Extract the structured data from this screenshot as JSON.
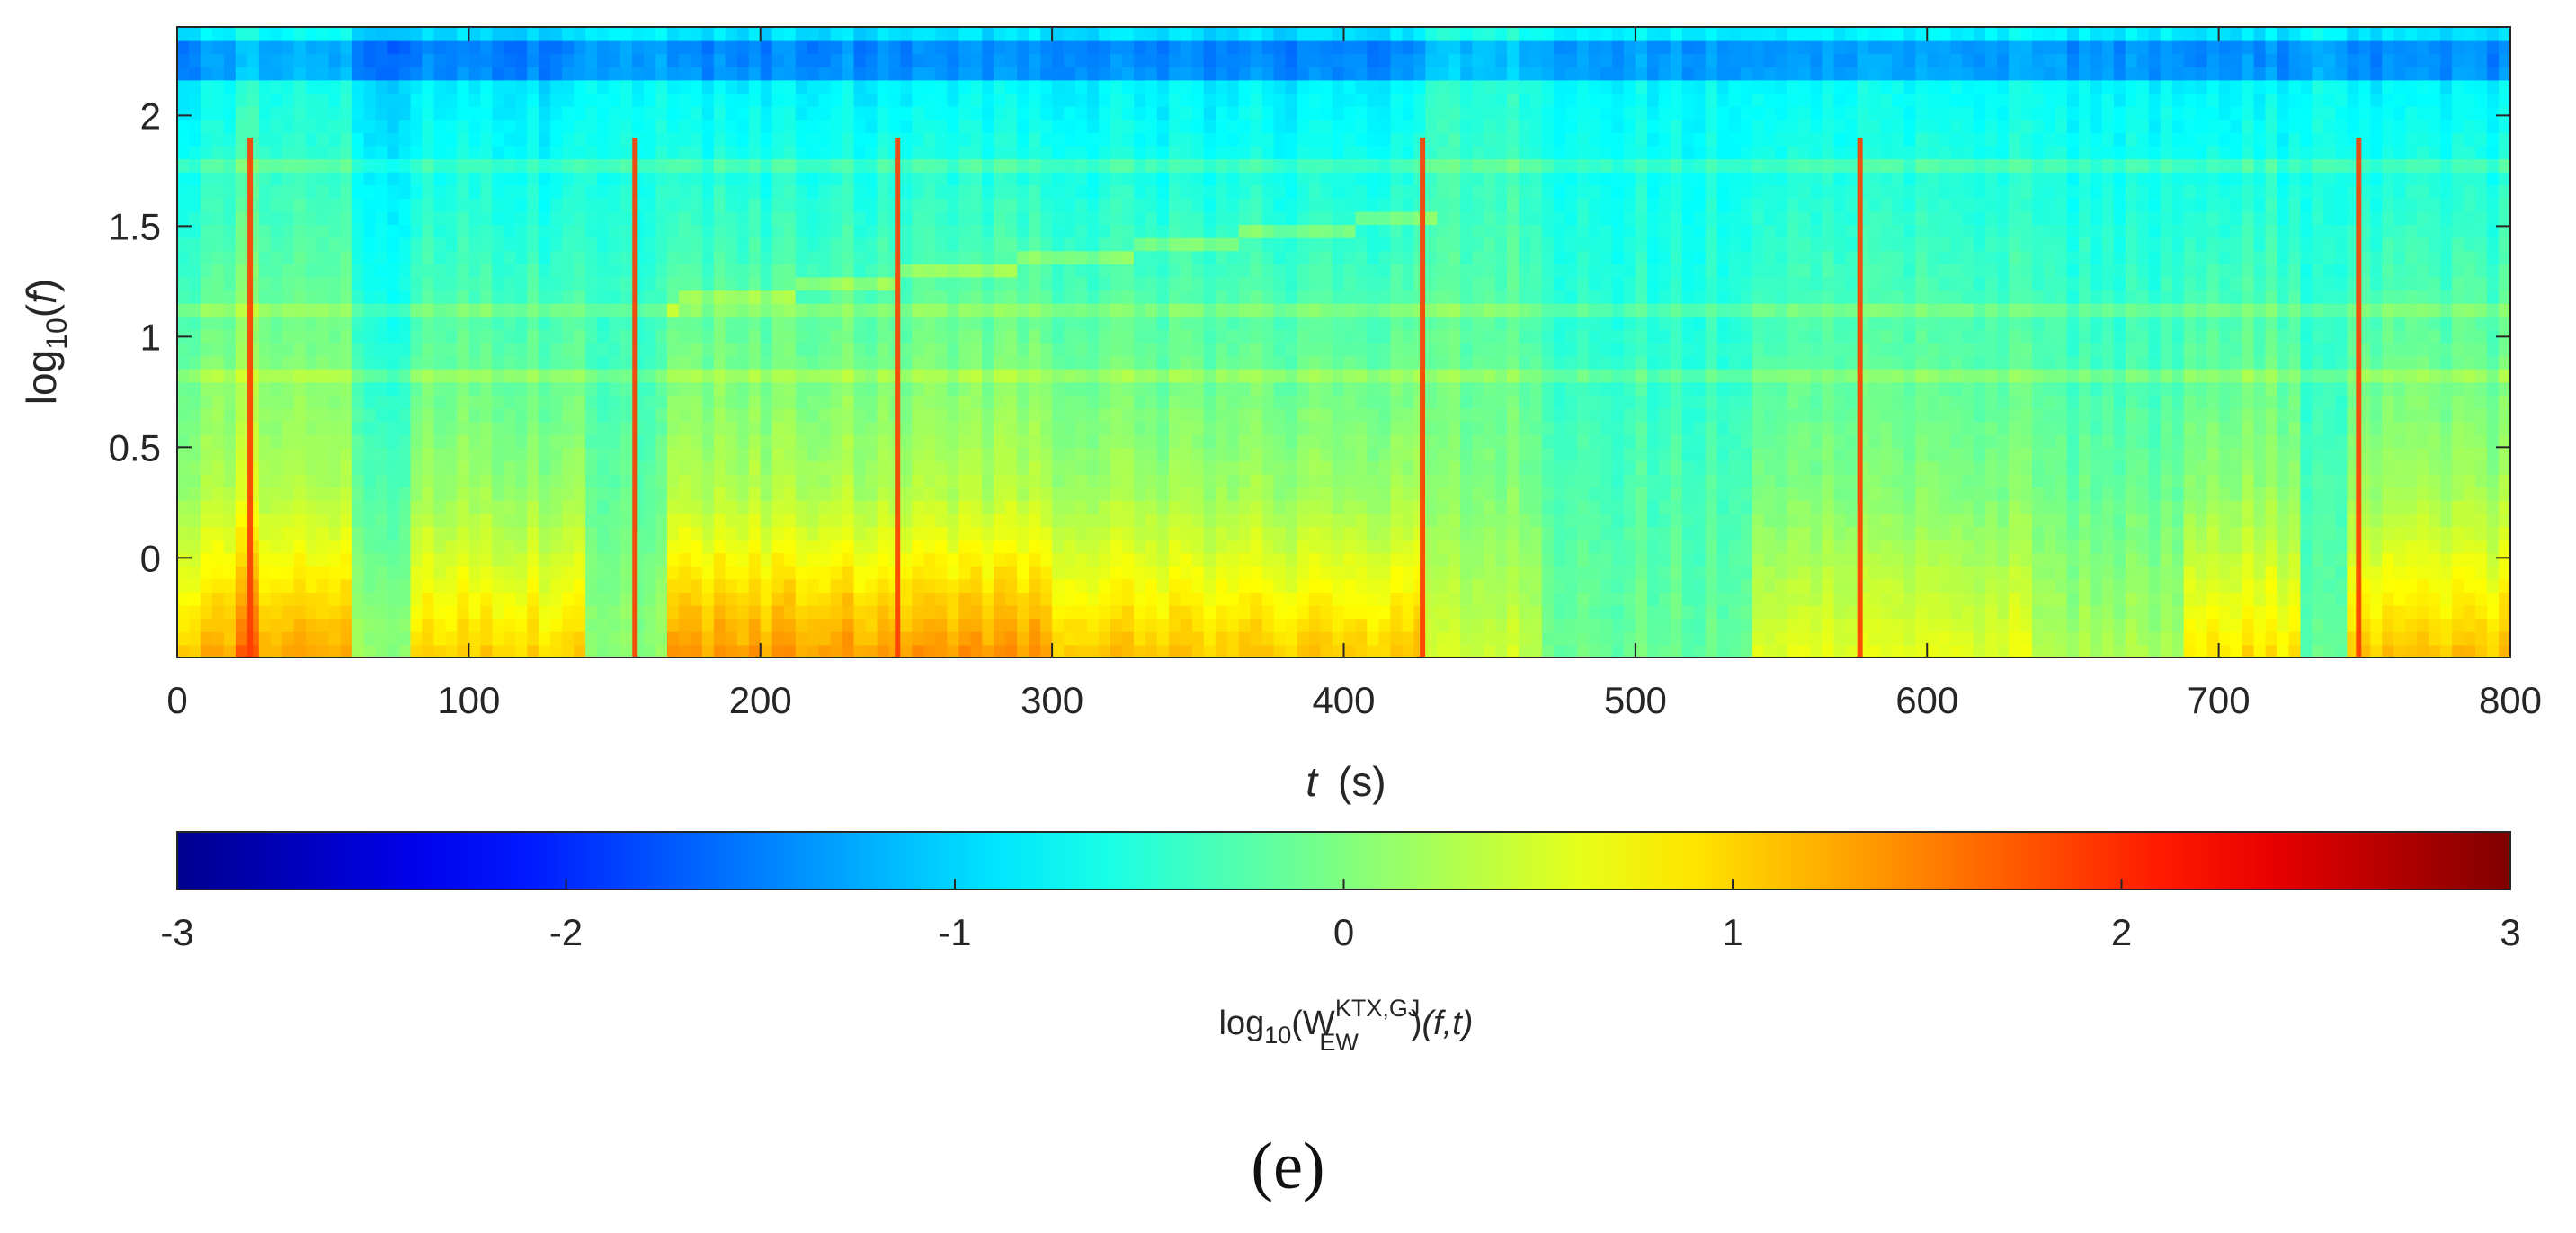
{
  "chart_data": {
    "type": "heatmap",
    "title": "",
    "xlabel_var": "t",
    "xlabel_unit": "(s)",
    "ylabel_pre": "log",
    "ylabel_sub": "10",
    "ylabel_open": "(",
    "ylabel_var": "f",
    "ylabel_close": ")",
    "xlim": [
      0,
      800
    ],
    "ylim": [
      -0.45,
      2.4
    ],
    "x_ticks": [
      0,
      100,
      200,
      300,
      400,
      500,
      600,
      700,
      800
    ],
    "x_tick_labels": [
      "0",
      "100",
      "200",
      "300",
      "400",
      "500",
      "600",
      "700",
      "800"
    ],
    "y_ticks": [
      0,
      0.5,
      1,
      1.5,
      2
    ],
    "y_tick_labels": [
      "0",
      "0.5",
      "1",
      "1.5",
      "2"
    ],
    "grid": false,
    "colormap": "jet",
    "colorbar": {
      "range": [
        -3,
        3
      ],
      "ticks": [
        -3,
        -2,
        -1,
        0,
        1,
        2,
        3
      ],
      "tick_labels": [
        "-3",
        "-2",
        "-1",
        "0",
        "1",
        "2",
        "3"
      ],
      "label_pre": "log",
      "label_sub": "10",
      "label_open": "(W",
      "label_sup": "KTX,GJ",
      "label_sub2": "EW",
      "label_close": ")",
      "label_args": "(f,t)"
    },
    "colorbar_stops": [
      "#00008f",
      "#0000ff",
      "#00ffff",
      "#ffff00",
      "#ff0000",
      "#800000"
    ],
    "time_segments": [
      {
        "t": [
          0,
          22
        ],
        "bias": 0.05,
        "decay": 0.55
      },
      {
        "t": [
          22,
          30
        ],
        "bias": 0.35,
        "decay": 0.55
      },
      {
        "t": [
          30,
          60
        ],
        "bias": 0.15,
        "decay": 0.5
      },
      {
        "t": [
          60,
          82
        ],
        "bias": -0.5,
        "decay": 0.4
      },
      {
        "t": [
          82,
          140
        ],
        "bias": -0.05,
        "decay": 0.55
      },
      {
        "t": [
          140,
          170
        ],
        "bias": -0.55,
        "decay": 0.3
      },
      {
        "t": [
          170,
          300
        ],
        "bias": 0.15,
        "decay": 0.6
      },
      {
        "t": [
          300,
          430
        ],
        "bias": 0.0,
        "decay": 0.55
      },
      {
        "t": [
          430,
          470
        ],
        "bias": -0.35,
        "decay": 0.3
      },
      {
        "t": [
          470,
          540
        ],
        "bias": -0.7,
        "decay": 0.25
      },
      {
        "t": [
          540,
          635
        ],
        "bias": -0.25,
        "decay": 0.4
      },
      {
        "t": [
          635,
          690
        ],
        "bias": -0.45,
        "decay": 0.35
      },
      {
        "t": [
          690,
          730
        ],
        "bias": -0.1,
        "decay": 0.5
      },
      {
        "t": [
          730,
          745
        ],
        "bias": -0.75,
        "decay": 0.2
      },
      {
        "t": [
          745,
          800
        ],
        "bias": 0.0,
        "decay": 0.55
      }
    ],
    "vertical_streaks_t": [
      25,
      157,
      247,
      427,
      577,
      748
    ],
    "dark_band_log_f": 2.28,
    "horizontal_lines_log_f": [
      1.8,
      1.1,
      0.8
    ],
    "rising_trace": {
      "t": [
        170,
        430
      ],
      "log_f": [
        1.15,
        1.55
      ]
    },
    "panel_label": "(e)"
  }
}
